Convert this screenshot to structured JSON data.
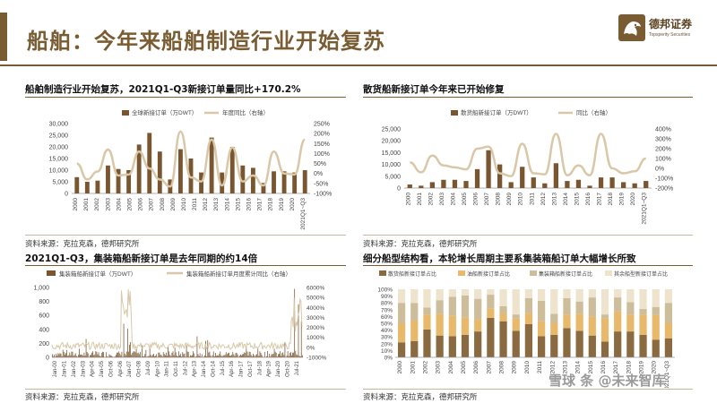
{
  "header": {
    "title": "船舶：今年来船舶制造行业开始复苏",
    "logo_cn": "德邦证券",
    "logo_en": "Topsperity Securities"
  },
  "colors": {
    "brand": "#7a5c32",
    "bar": "#7a5630",
    "line": "#d8c8a8",
    "bar_light": "#e8b96a",
    "tan": "#cdbd9b",
    "brown2": "#8a6a40"
  },
  "panels": {
    "p1": {
      "title": "船舶制造行业开始复苏，2021Q1-Q3新接订单量同比+170.2%",
      "source": "资料来源：克拉克森，德邦研究所"
    },
    "p2": {
      "title": "散货船新接订单今年来已开始修复",
      "source": "资料来源：克拉克森，德邦研究所"
    },
    "p3": {
      "title": "2021Q1-Q3，集装箱船新接订单是去年同期的约14倍",
      "source": "资料来源：克拉克森，德邦研究所"
    },
    "p4": {
      "title": "细分船型结构看，本轮增长周期主要系集装箱船订单大幅增长所致",
      "source": "资料来源：克拉克森，德邦研究所"
    }
  },
  "watermark": "雪球 条 @未来智库",
  "chart_data": [
    {
      "type": "bar",
      "series": [
        {
          "name": "全球新接订单（万DWT）",
          "kind": "bar",
          "axis": "left",
          "values": [
            7000,
            5000,
            5500,
            12000,
            10500,
            10000,
            21000,
            26000,
            18000,
            6000,
            19000,
            15000,
            9000,
            24000,
            9000,
            20000,
            12000,
            11000,
            4500,
            9500,
            9500,
            9000,
            10000
          ]
        },
        {
          "name": "年度同比（右轴）",
          "kind": "line",
          "axis": "right",
          "values": [
            50,
            -30,
            10,
            120,
            -10,
            -5,
            110,
            25,
            -30,
            -65,
            210,
            -20,
            -40,
            170,
            -60,
            130,
            -40,
            -10,
            -60,
            110,
            0,
            -5,
            170
          ]
        }
      ],
      "categories": [
        "2000",
        "2001",
        "2002",
        "2003",
        "2004",
        "2005",
        "2006",
        "2007",
        "2008",
        "2009",
        "2010",
        "2011",
        "2012",
        "2013",
        "2014",
        "2015",
        "2016",
        "2017",
        "2018",
        "2019",
        "2020",
        "2020Q1~Q3",
        "2021Q1~Q3"
      ],
      "tick_labels": [
        "2000",
        "2001",
        "2002",
        "2003",
        "2004",
        "2005",
        "2006",
        "2007",
        "2008",
        "2009",
        "2010",
        "2011",
        "2012",
        "2013",
        "2014",
        "2015",
        "2016",
        "2017",
        "2018",
        "2019",
        "2020",
        "2021Q1~Q3"
      ],
      "y_left": {
        "min": 0,
        "max": 30000,
        "ticks": [
          "0",
          "5,000",
          "10,000",
          "15,000",
          "20,000",
          "25,000",
          "30,000"
        ]
      },
      "y_right": {
        "min": -100,
        "max": 250,
        "ticks": [
          "-100%",
          "-50%",
          "0%",
          "50%",
          "100%",
          "150%",
          "200%",
          "250%"
        ]
      }
    },
    {
      "type": "bar",
      "series": [
        {
          "name": "散货船新接订单（万DWT）",
          "kind": "bar",
          "axis": "left",
          "values": [
            1500,
            1000,
            2500,
            3500,
            3500,
            3000,
            8000,
            16000,
            10000,
            2500,
            9000,
            4500,
            2000,
            10500,
            3000,
            3500,
            1000,
            4500,
            4500,
            2500,
            2000,
            3000
          ]
        },
        {
          "name": "同比（右轴）",
          "kind": "line",
          "axis": "right",
          "values": [
            60,
            -40,
            130,
            30,
            10,
            -10,
            200,
            220,
            -50,
            -80,
            250,
            -50,
            -60,
            350,
            -70,
            30,
            -70,
            350,
            0,
            -50,
            -30,
            100
          ]
        }
      ],
      "tick_labels": [
        "2000",
        "2001",
        "2002",
        "2003",
        "2004",
        "2005",
        "2006",
        "2007",
        "2008",
        "2009",
        "2010",
        "2011",
        "2012",
        "2013",
        "2014",
        "2015",
        "2016",
        "2017",
        "2018",
        "2019",
        "2020",
        "2021Q1~Q3"
      ],
      "y_left": {
        "min": 0,
        "max": 25000,
        "ticks": [
          "0",
          "5,000",
          "10,000",
          "15,000",
          "20,000",
          "25,000"
        ]
      },
      "y_right": {
        "min": -200,
        "max": 400,
        "ticks": [
          "-200%",
          "-100%",
          "0%",
          "100%",
          "200%",
          "300%",
          "400%"
        ]
      }
    },
    {
      "type": "bar",
      "series": [
        {
          "name": "集装箱船新接订单（万DWT）",
          "kind": "bar",
          "axis": "left"
        },
        {
          "name": "集装箱船新接订单月度累计同比（右轴）",
          "kind": "line",
          "axis": "right"
        }
      ],
      "x_labels": [
        "Jan-00",
        "Jan-01",
        "Jan-02",
        "Jan-03",
        "Apr-04",
        "Jan-05",
        "Oct-06",
        "Apr-06",
        "Jan-07",
        "Oct-08",
        "Jul-09",
        "Apr-10",
        "Jan-11",
        "Oct-11",
        "Jul-12",
        "Apr-13",
        "Jan-14",
        "Oct-14",
        "Jul-15",
        "Apr-16",
        "Jan-17",
        "Oct-17",
        "Jul-18",
        "Apr-19",
        "Jan-20",
        "Oct-20",
        "Jul-21"
      ],
      "y_left": {
        "min": 0,
        "max": 1000,
        "ticks": [
          "0",
          "200",
          "400",
          "600",
          "800",
          "1,000"
        ]
      },
      "y_right": {
        "min": -1000,
        "max": 6000,
        "ticks": [
          "-1000%",
          "0%",
          "1000%",
          "2000%",
          "3000%",
          "4000%",
          "5000%",
          "6000%"
        ]
      }
    },
    {
      "type": "bar",
      "stacked": true,
      "series": [
        {
          "name": "散货船新接订单占比",
          "values": [
            22,
            24,
            41,
            32,
            31,
            33,
            38,
            58,
            53,
            39,
            49,
            31,
            33,
            43,
            39,
            32,
            23,
            38,
            38,
            33,
            26,
            28
          ]
        },
        {
          "name": "油船新接订单占比",
          "values": [
            28,
            30,
            22,
            32,
            30,
            26,
            18,
            14,
            12,
            18,
            16,
            22,
            17,
            20,
            25,
            28,
            34,
            30,
            25,
            30,
            36,
            22
          ]
        },
        {
          "name": "集装箱船新接订单占比",
          "values": [
            30,
            26,
            10,
            20,
            28,
            32,
            30,
            20,
            10,
            6,
            22,
            30,
            14,
            24,
            18,
            28,
            6,
            20,
            18,
            8,
            12,
            30
          ]
        },
        {
          "name": "其余船型新接订单占比",
          "values": [
            20,
            20,
            27,
            16,
            11,
            9,
            14,
            8,
            25,
            37,
            13,
            17,
            36,
            13,
            18,
            12,
            37,
            12,
            19,
            29,
            26,
            20
          ]
        }
      ],
      "tick_labels": [
        "2000",
        "2001",
        "2002",
        "2003",
        "2004",
        "2005",
        "2006",
        "2007",
        "2008",
        "2009",
        "2010",
        "2011",
        "2012",
        "2013",
        "2014",
        "2015",
        "2016",
        "2017",
        "2018",
        "2019",
        "2020",
        "2021Q1~Q3"
      ],
      "y_left": {
        "min": 0,
        "max": 100,
        "ticks": [
          "0%",
          "10%",
          "20%",
          "30%",
          "40%",
          "50%",
          "60%",
          "70%",
          "80%",
          "90%",
          "100%"
        ]
      }
    }
  ]
}
